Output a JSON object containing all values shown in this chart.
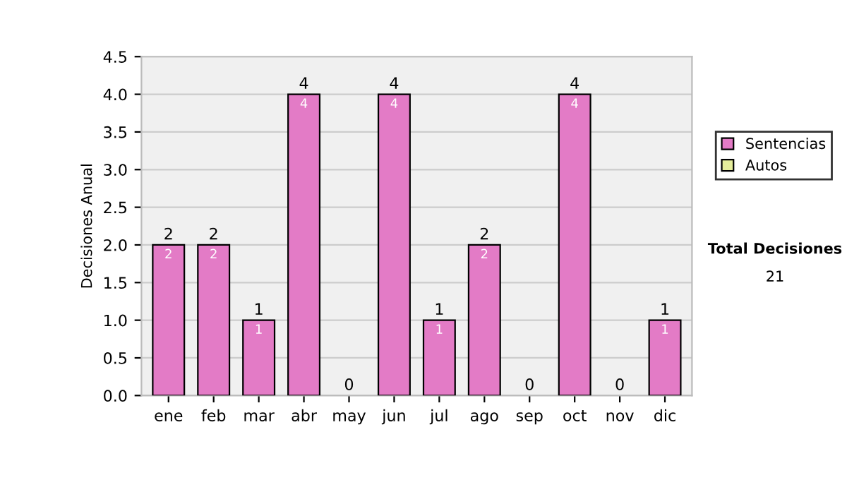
{
  "chart_data": {
    "type": "bar",
    "stacked": true,
    "ylabel": "Decisiones Anual",
    "categories": [
      "ene",
      "feb",
      "mar",
      "abr",
      "may",
      "jun",
      "jul",
      "ago",
      "sep",
      "oct",
      "nov",
      "dic"
    ],
    "series": [
      {
        "name": "Sentencias",
        "color": "#e37bc6",
        "values": [
          2,
          2,
          1,
          4,
          0,
          4,
          1,
          2,
          0,
          4,
          0,
          1
        ],
        "value_labels": [
          "2",
          "2",
          "1",
          "4",
          null,
          "4",
          "1",
          "2",
          null,
          "4",
          null,
          "1"
        ]
      },
      {
        "name": "Autos",
        "color": "#e6ee9c",
        "values": [
          0,
          0,
          0,
          0,
          0,
          0,
          0,
          0,
          0,
          0,
          0,
          0
        ]
      }
    ],
    "totals": [
      "2",
      "2",
      "1",
      "4",
      "0",
      "4",
      "1",
      "2",
      "0",
      "4",
      "0",
      "1"
    ],
    "ylim": [
      0,
      4.5
    ],
    "yticks": [
      "0.0",
      "0.5",
      "1.0",
      "1.5",
      "2.0",
      "2.5",
      "3.0",
      "3.5",
      "4.0",
      "4.5"
    ],
    "grid": "y",
    "legend": "right",
    "annotations": [
      "Total Decisiones",
      "21"
    ]
  }
}
